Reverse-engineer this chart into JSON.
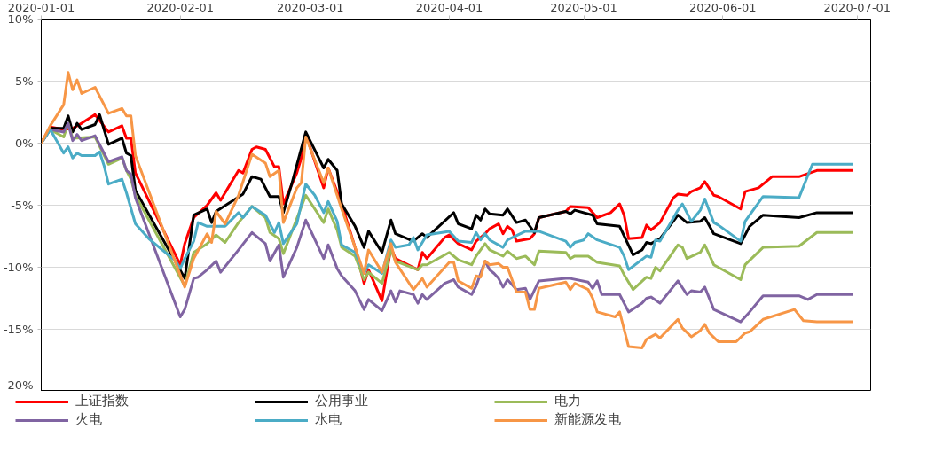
{
  "chart_data": {
    "type": "line",
    "xlim": [
      "2020-01-01",
      "2020-07-04"
    ],
    "xticks": [
      "2020-01-01",
      "2020-02-01",
      "2020-03-01",
      "2020-04-01",
      "2020-05-01",
      "2020-06-01",
      "2020-07-01"
    ],
    "ylim": [
      -20,
      10
    ],
    "yticks": [
      {
        "value": -20,
        "label": "-20%"
      },
      {
        "value": -15,
        "label": "-15%"
      },
      {
        "value": -10,
        "label": "-10%"
      },
      {
        "value": -5,
        "label": "-5%"
      },
      {
        "value": 0,
        "label": "0%"
      },
      {
        "value": 5,
        "label": "5%"
      },
      {
        "value": 10,
        "label": "10%"
      }
    ],
    "grid": "y",
    "legend": "bottom",
    "marker": "none",
    "line_style": "solid",
    "series": [
      {
        "name": "上证指数",
        "color": "#ff0000",
        "x": [
          "2020-01-01",
          "2020-01-03",
          "2020-01-06",
          "2020-01-08",
          "2020-01-10",
          "2020-01-13",
          "2020-01-16",
          "2020-01-19",
          "2020-01-20",
          "2020-01-21",
          "2020-01-22",
          "2020-02-01",
          "2020-02-02",
          "2020-02-04",
          "2020-02-07",
          "2020-02-09",
          "2020-02-10",
          "2020-02-14",
          "2020-02-15",
          "2020-02-17",
          "2020-02-18",
          "2020-02-20",
          "2020-02-22",
          "2020-02-23",
          "2020-02-24",
          "2020-02-27",
          "2020-02-28",
          "2020-02-29",
          "2020-03-04",
          "2020-03-05",
          "2020-03-08",
          "2020-03-11",
          "2020-03-13",
          "2020-03-14",
          "2020-03-17",
          "2020-03-19",
          "2020-03-20",
          "2020-03-25",
          "2020-03-26",
          "2020-03-27",
          "2020-03-31",
          "2020-04-01",
          "2020-04-03",
          "2020-04-06",
          "2020-04-07",
          "2020-04-09",
          "2020-04-10",
          "2020-04-12",
          "2020-04-13",
          "2020-04-14",
          "2020-04-15",
          "2020-04-16",
          "2020-04-19",
          "2020-04-20",
          "2020-04-21",
          "2020-04-27",
          "2020-04-28",
          "2020-05-02",
          "2020-05-04",
          "2020-05-07",
          "2020-05-09",
          "2020-05-10",
          "2020-05-11",
          "2020-05-14",
          "2020-05-15",
          "2020-05-16",
          "2020-05-18",
          "2020-05-21",
          "2020-05-22",
          "2020-05-24",
          "2020-05-25",
          "2020-05-27",
          "2020-05-28",
          "2020-05-30",
          "2020-05-31",
          "2020-06-05",
          "2020-06-06",
          "2020-06-09",
          "2020-06-12",
          "2020-06-18",
          "2020-06-22",
          "2020-06-30"
        ],
        "values": [
          0,
          1.3,
          1.1,
          1.2,
          1.6,
          2.3,
          0.9,
          1.4,
          0.4,
          0.4,
          -2.4,
          -9.8,
          -8.1,
          -6.0,
          -5.0,
          -4.0,
          -4.6,
          -2.2,
          -2.4,
          -0.5,
          -0.3,
          -0.5,
          -1.9,
          -1.9,
          -4.9,
          -2.4,
          -1.2,
          0.7,
          -3.6,
          -2.0,
          -4.9,
          -8.4,
          -11.3,
          -10.2,
          -12.7,
          -8.4,
          -9.3,
          -10.2,
          -8.8,
          -9.3,
          -7.6,
          -7.4,
          -8.1,
          -8.6,
          -7.9,
          -7.3,
          -6.9,
          -6.5,
          -7.3,
          -6.7,
          -7.0,
          -7.9,
          -7.7,
          -7.3,
          -6.0,
          -5.5,
          -5.1,
          -5.2,
          -6.0,
          -5.6,
          -4.9,
          -5.8,
          -7.7,
          -7.6,
          -6.6,
          -7.0,
          -6.4,
          -4.4,
          -4.1,
          -4.2,
          -3.9,
          -3.6,
          -3.1,
          -4.2,
          -4.3,
          -5.3,
          -3.9,
          -3.6,
          -2.7,
          -2.7,
          -2.2,
          -2.2
        ]
      },
      {
        "name": "公用事业",
        "color": "#000000",
        "x": [
          "2020-01-01",
          "2020-01-03",
          "2020-01-06",
          "2020-01-07",
          "2020-01-08",
          "2020-01-09",
          "2020-01-10",
          "2020-01-13",
          "2020-01-14",
          "2020-01-16",
          "2020-01-19",
          "2020-01-20",
          "2020-01-21",
          "2020-01-22",
          "2020-02-02",
          "2020-02-04",
          "2020-02-07",
          "2020-02-08",
          "2020-02-09",
          "2020-02-15",
          "2020-02-17",
          "2020-02-19",
          "2020-02-21",
          "2020-02-23",
          "2020-02-24",
          "2020-02-26",
          "2020-02-29",
          "2020-03-04",
          "2020-03-05",
          "2020-03-07",
          "2020-03-08",
          "2020-03-11",
          "2020-03-13",
          "2020-03-14",
          "2020-03-17",
          "2020-03-19",
          "2020-03-20",
          "2020-03-24",
          "2020-03-26",
          "2020-03-27",
          "2020-04-02",
          "2020-04-03",
          "2020-04-06",
          "2020-04-07",
          "2020-04-08",
          "2020-04-09",
          "2020-04-10",
          "2020-04-13",
          "2020-04-14",
          "2020-04-16",
          "2020-04-18",
          "2020-04-20",
          "2020-04-21",
          "2020-04-27",
          "2020-04-28",
          "2020-04-29",
          "2020-05-03",
          "2020-05-04",
          "2020-05-09",
          "2020-05-12",
          "2020-05-14",
          "2020-05-15",
          "2020-05-16",
          "2020-05-18",
          "2020-05-22",
          "2020-05-24",
          "2020-05-27",
          "2020-05-28",
          "2020-05-30",
          "2020-06-05",
          "2020-06-07",
          "2020-06-10",
          "2020-06-18",
          "2020-06-22",
          "2020-06-30"
        ],
        "values": [
          0,
          1.2,
          1.2,
          2.2,
          0.9,
          1.6,
          1.1,
          1.5,
          2.3,
          -0.1,
          0.4,
          -0.8,
          -1.0,
          -3.8,
          -10.9,
          -5.8,
          -5.3,
          -6.4,
          -5.5,
          -4.1,
          -2.7,
          -2.9,
          -4.3,
          -4.3,
          -5.6,
          -3.1,
          0.9,
          -2.0,
          -1.3,
          -2.2,
          -4.9,
          -6.7,
          -8.4,
          -7.1,
          -8.8,
          -6.2,
          -7.3,
          -7.9,
          -7.3,
          -7.6,
          -5.6,
          -6.5,
          -6.9,
          -5.8,
          -6.2,
          -5.3,
          -5.7,
          -5.8,
          -5.3,
          -6.4,
          -6.2,
          -7.2,
          -6.0,
          -5.5,
          -5.7,
          -5.4,
          -5.8,
          -6.5,
          -6.7,
          -9.0,
          -8.6,
          -8.0,
          -8.1,
          -7.7,
          -5.8,
          -6.4,
          -6.3,
          -6.0,
          -7.3,
          -8.1,
          -6.7,
          -5.8,
          -6.0,
          -5.6,
          -5.6
        ]
      },
      {
        "name": "电力",
        "color": "#9bbb59",
        "x": [
          "2020-01-01",
          "2020-01-03",
          "2020-01-06",
          "2020-01-07",
          "2020-01-08",
          "2020-01-13",
          "2020-01-16",
          "2020-01-19",
          "2020-01-20",
          "2020-01-21",
          "2020-01-22",
          "2020-02-02",
          "2020-02-04",
          "2020-02-07",
          "2020-02-09",
          "2020-02-11",
          "2020-02-14",
          "2020-02-17",
          "2020-02-20",
          "2020-02-21",
          "2020-02-23",
          "2020-02-24",
          "2020-02-29",
          "2020-03-04",
          "2020-03-05",
          "2020-03-07",
          "2020-03-08",
          "2020-03-11",
          "2020-03-13",
          "2020-03-14",
          "2020-03-17",
          "2020-03-19",
          "2020-03-20",
          "2020-03-25",
          "2020-03-26",
          "2020-03-27",
          "2020-04-01",
          "2020-04-03",
          "2020-04-06",
          "2020-04-07",
          "2020-04-09",
          "2020-04-10",
          "2020-04-13",
          "2020-04-14",
          "2020-04-16",
          "2020-04-18",
          "2020-04-20",
          "2020-04-21",
          "2020-04-27",
          "2020-04-28",
          "2020-04-29",
          "2020-05-02",
          "2020-05-04",
          "2020-05-09",
          "2020-05-10",
          "2020-05-12",
          "2020-05-15",
          "2020-05-16",
          "2020-05-17",
          "2020-05-18",
          "2020-05-22",
          "2020-05-23",
          "2020-05-24",
          "2020-05-27",
          "2020-05-28",
          "2020-05-30",
          "2020-06-05",
          "2020-06-06",
          "2020-06-10",
          "2020-06-18",
          "2020-06-22",
          "2020-06-30"
        ],
        "values": [
          0,
          1.1,
          0.5,
          1.6,
          0.4,
          0.5,
          -1.7,
          -1.2,
          -2.2,
          -2.9,
          -4.2,
          -11.5,
          -8.8,
          -8.1,
          -7.4,
          -8.0,
          -6.4,
          -5.1,
          -6.0,
          -7.2,
          -7.7,
          -8.9,
          -4.2,
          -6.4,
          -5.3,
          -7.0,
          -8.4,
          -9.1,
          -11.0,
          -10.4,
          -11.3,
          -8.6,
          -9.5,
          -10.2,
          -9.8,
          -9.8,
          -8.8,
          -9.4,
          -9.8,
          -9.1,
          -8.1,
          -8.6,
          -9.1,
          -8.7,
          -9.3,
          -9.1,
          -9.8,
          -8.7,
          -8.8,
          -9.3,
          -9.1,
          -9.1,
          -9.6,
          -9.9,
          -10.6,
          -11.8,
          -10.8,
          -10.9,
          -10.0,
          -10.3,
          -8.2,
          -8.4,
          -9.3,
          -8.8,
          -8.2,
          -9.8,
          -11.0,
          -9.8,
          -8.4,
          -8.3,
          -7.2,
          -7.2
        ]
      },
      {
        "name": "火电",
        "color": "#8064a2",
        "x": [
          "2020-01-01",
          "2020-01-03",
          "2020-01-06",
          "2020-01-07",
          "2020-01-08",
          "2020-01-09",
          "2020-01-10",
          "2020-01-13",
          "2020-01-16",
          "2020-01-19",
          "2020-01-20",
          "2020-01-21",
          "2020-01-22",
          "2020-02-01",
          "2020-02-02",
          "2020-02-04",
          "2020-02-05",
          "2020-02-07",
          "2020-02-09",
          "2020-02-10",
          "2020-02-14",
          "2020-02-17",
          "2020-02-20",
          "2020-02-21",
          "2020-02-23",
          "2020-02-24",
          "2020-02-27",
          "2020-02-29",
          "2020-03-04",
          "2020-03-05",
          "2020-03-07",
          "2020-03-08",
          "2020-03-11",
          "2020-03-13",
          "2020-03-14",
          "2020-03-17",
          "2020-03-19",
          "2020-03-20",
          "2020-03-21",
          "2020-03-24",
          "2020-03-25",
          "2020-03-26",
          "2020-03-27",
          "2020-03-31",
          "2020-04-02",
          "2020-04-03",
          "2020-04-06",
          "2020-04-07",
          "2020-04-09",
          "2020-04-10",
          "2020-04-11",
          "2020-04-12",
          "2020-04-13",
          "2020-04-14",
          "2020-04-16",
          "2020-04-18",
          "2020-04-19",
          "2020-04-21",
          "2020-04-27",
          "2020-04-28",
          "2020-05-02",
          "2020-05-03",
          "2020-05-04",
          "2020-05-05",
          "2020-05-09",
          "2020-05-11",
          "2020-05-14",
          "2020-05-15",
          "2020-05-16",
          "2020-05-18",
          "2020-05-22",
          "2020-05-24",
          "2020-05-25",
          "2020-05-27",
          "2020-05-28",
          "2020-05-30",
          "2020-06-05",
          "2020-06-07",
          "2020-06-10",
          "2020-06-18",
          "2020-06-20",
          "2020-06-22",
          "2020-06-30"
        ],
        "values": [
          0,
          1.1,
          0.9,
          1.6,
          0.2,
          0.7,
          0.2,
          0.6,
          -1.5,
          -1.1,
          -2.2,
          -2.5,
          -4.4,
          -14.0,
          -13.4,
          -10.9,
          -10.8,
          -10.2,
          -9.5,
          -10.4,
          -8.6,
          -7.2,
          -8.1,
          -9.5,
          -8.2,
          -10.8,
          -8.4,
          -6.2,
          -9.3,
          -8.2,
          -10.1,
          -10.7,
          -11.9,
          -13.4,
          -12.6,
          -13.5,
          -11.9,
          -12.8,
          -11.9,
          -12.2,
          -12.9,
          -12.2,
          -12.6,
          -11.3,
          -11.0,
          -11.6,
          -12.2,
          -11.5,
          -9.5,
          -10.2,
          -10.5,
          -10.9,
          -11.6,
          -11.0,
          -11.8,
          -11.7,
          -12.6,
          -11.1,
          -10.9,
          -10.9,
          -11.2,
          -11.7,
          -11.1,
          -12.2,
          -12.2,
          -13.6,
          -12.9,
          -12.5,
          -12.4,
          -12.9,
          -11.1,
          -12.2,
          -11.9,
          -12.0,
          -11.6,
          -13.4,
          -14.4,
          -13.6,
          -12.3,
          -12.3,
          -12.6,
          -12.2,
          -12.2
        ]
      },
      {
        "name": "水电",
        "color": "#4bacc6",
        "x": [
          "2020-01-01",
          "2020-01-03",
          "2020-01-06",
          "2020-01-07",
          "2020-01-08",
          "2020-01-09",
          "2020-01-10",
          "2020-01-13",
          "2020-01-14",
          "2020-01-15",
          "2020-01-16",
          "2020-01-19",
          "2020-01-20",
          "2020-01-22",
          "2020-01-25",
          "2020-01-31",
          "2020-02-01",
          "2020-02-02",
          "2020-02-04",
          "2020-02-05",
          "2020-02-07",
          "2020-02-11",
          "2020-02-14",
          "2020-02-15",
          "2020-02-17",
          "2020-02-20",
          "2020-02-22",
          "2020-02-23",
          "2020-02-24",
          "2020-02-27",
          "2020-02-29",
          "2020-03-02",
          "2020-03-04",
          "2020-03-05",
          "2020-03-07",
          "2020-03-08",
          "2020-03-11",
          "2020-03-13",
          "2020-03-14",
          "2020-03-17",
          "2020-03-19",
          "2020-03-20",
          "2020-03-23",
          "2020-03-24",
          "2020-03-25",
          "2020-03-27",
          "2020-04-01",
          "2020-04-03",
          "2020-04-06",
          "2020-04-07",
          "2020-04-08",
          "2020-04-09",
          "2020-04-10",
          "2020-04-13",
          "2020-04-14",
          "2020-04-18",
          "2020-04-21",
          "2020-04-27",
          "2020-04-28",
          "2020-04-29",
          "2020-05-01",
          "2020-05-02",
          "2020-05-04",
          "2020-05-09",
          "2020-05-10",
          "2020-05-11",
          "2020-05-15",
          "2020-05-16",
          "2020-05-17",
          "2020-05-18",
          "2020-05-22",
          "2020-05-23",
          "2020-05-25",
          "2020-05-27",
          "2020-05-28",
          "2020-05-30",
          "2020-05-31",
          "2020-06-05",
          "2020-06-06",
          "2020-06-10",
          "2020-06-18",
          "2020-06-21",
          "2020-06-30"
        ],
        "values": [
          0,
          1.1,
          -0.8,
          -0.3,
          -1.2,
          -0.8,
          -1.0,
          -1.0,
          -0.7,
          -1.8,
          -3.3,
          -2.9,
          -4.0,
          -6.5,
          -7.7,
          -9.5,
          -10.1,
          -9.3,
          -7.9,
          -6.4,
          -6.7,
          -6.7,
          -5.6,
          -6.0,
          -5.1,
          -5.8,
          -7.2,
          -6.4,
          -8.1,
          -6.5,
          -3.3,
          -4.2,
          -5.6,
          -4.7,
          -6.3,
          -8.2,
          -8.8,
          -10.5,
          -9.8,
          -10.5,
          -7.8,
          -8.4,
          -8.2,
          -7.6,
          -8.6,
          -7.4,
          -7.1,
          -7.9,
          -8.0,
          -7.2,
          -7.8,
          -7.3,
          -7.8,
          -8.4,
          -7.8,
          -7.1,
          -7.1,
          -7.9,
          -8.4,
          -8.0,
          -7.8,
          -7.3,
          -7.8,
          -8.4,
          -9.1,
          -10.2,
          -9.1,
          -9.2,
          -7.8,
          -7.9,
          -5.4,
          -4.9,
          -6.3,
          -5.4,
          -4.5,
          -6.4,
          -6.6,
          -7.9,
          -6.3,
          -4.3,
          -4.4,
          -1.7,
          -1.7
        ]
      },
      {
        "name": "新能源发电",
        "color": "#f79646",
        "x": [
          "2020-01-01",
          "2020-01-03",
          "2020-01-06",
          "2020-01-07",
          "2020-01-08",
          "2020-01-09",
          "2020-01-10",
          "2020-01-13",
          "2020-01-16",
          "2020-01-19",
          "2020-01-20",
          "2020-01-21",
          "2020-01-22",
          "2020-02-02",
          "2020-02-04",
          "2020-02-07",
          "2020-02-08",
          "2020-02-09",
          "2020-02-11",
          "2020-02-14",
          "2020-02-17",
          "2020-02-20",
          "2020-02-21",
          "2020-02-23",
          "2020-02-24",
          "2020-02-27",
          "2020-02-28",
          "2020-02-29",
          "2020-03-04",
          "2020-03-05",
          "2020-03-08",
          "2020-03-11",
          "2020-03-13",
          "2020-03-14",
          "2020-03-17",
          "2020-03-19",
          "2020-03-20",
          "2020-03-24",
          "2020-03-26",
          "2020-03-27",
          "2020-04-01",
          "2020-04-02",
          "2020-04-03",
          "2020-04-06",
          "2020-04-07",
          "2020-04-08",
          "2020-04-09",
          "2020-04-10",
          "2020-04-12",
          "2020-04-13",
          "2020-04-14",
          "2020-04-16",
          "2020-04-18",
          "2020-04-19",
          "2020-04-20",
          "2020-04-21",
          "2020-04-27",
          "2020-04-28",
          "2020-04-29",
          "2020-05-02",
          "2020-05-03",
          "2020-05-04",
          "2020-05-08",
          "2020-05-09",
          "2020-05-10",
          "2020-05-11",
          "2020-05-14",
          "2020-05-15",
          "2020-05-17",
          "2020-05-18",
          "2020-05-22",
          "2020-05-23",
          "2020-05-25",
          "2020-05-27",
          "2020-05-28",
          "2020-05-29",
          "2020-05-31",
          "2020-06-04",
          "2020-06-06",
          "2020-06-07",
          "2020-06-10",
          "2020-06-17",
          "2020-06-19",
          "2020-06-22",
          "2020-06-30"
        ],
        "values": [
          0,
          1.4,
          3.1,
          5.7,
          4.3,
          5.1,
          4.0,
          4.5,
          2.4,
          2.8,
          2.2,
          2.2,
          -1.0,
          -11.6,
          -9.3,
          -7.3,
          -8.0,
          -5.5,
          -6.5,
          -4.2,
          -0.9,
          -1.6,
          -2.7,
          -2.2,
          -6.4,
          -3.6,
          -3.2,
          0.5,
          -3.2,
          -2.0,
          -5.3,
          -8.4,
          -10.5,
          -8.6,
          -10.4,
          -8.1,
          -9.6,
          -11.8,
          -10.9,
          -11.6,
          -9.6,
          -9.6,
          -11.1,
          -11.7,
          -10.7,
          -10.8,
          -9.5,
          -9.8,
          -9.7,
          -10.0,
          -10.0,
          -12.0,
          -12.0,
          -13.4,
          -13.4,
          -11.7,
          -11.2,
          -11.8,
          -11.3,
          -11.8,
          -12.5,
          -13.6,
          -14.0,
          -13.6,
          -15.0,
          -16.4,
          -16.5,
          -15.8,
          -15.4,
          -15.7,
          -14.2,
          -14.9,
          -15.6,
          -15.1,
          -14.6,
          -15.3,
          -16.0,
          -16.0,
          -15.3,
          -15.2,
          -14.2,
          -13.4,
          -14.3,
          -14.4,
          -14.4
        ]
      }
    ]
  }
}
